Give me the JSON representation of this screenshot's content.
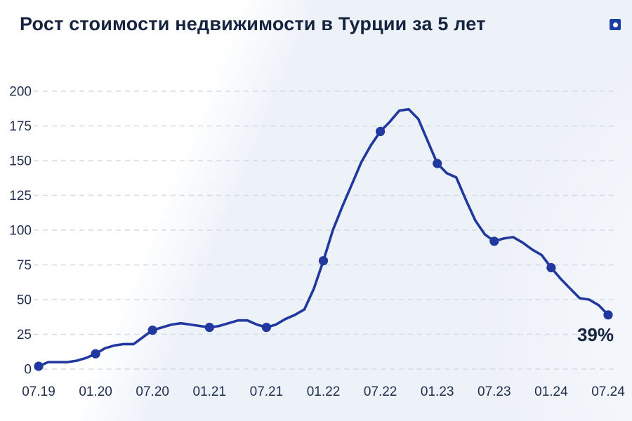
{
  "header": {
    "title": "Рост стоимости недвижимости в Турции за 5 лет",
    "logo_color": "#1e3ea7"
  },
  "chart_data": {
    "type": "line",
    "title": "Рост стоимости недвижимости в Турции за 5 лет",
    "unit": "%",
    "x_tick_labels": [
      "07.19",
      "01.20",
      "07.20",
      "01.21",
      "07.21",
      "01.22",
      "07.22",
      "01.23",
      "07.23",
      "01.24",
      "07.24"
    ],
    "y_ticks": [
      0,
      25,
      50,
      75,
      100,
      125,
      150,
      175,
      200
    ],
    "ylim": [
      0,
      200
    ],
    "grid": "horizontal-dashed",
    "legend": "none",
    "x_monthly_start": "07.19",
    "x_monthly_end": "07.24",
    "points_per_tick": 6,
    "values_monthly": [
      2,
      5,
      5,
      5,
      6,
      8,
      11,
      15,
      17,
      18,
      18,
      23,
      28,
      30,
      32,
      33,
      32,
      31,
      30,
      31,
      33,
      35,
      35,
      32,
      30,
      32,
      36,
      39,
      43,
      58,
      78,
      100,
      117,
      133,
      149,
      161,
      171,
      178,
      186,
      187,
      180,
      164,
      148,
      141,
      138,
      122,
      107,
      97,
      92,
      94,
      95,
      91,
      86,
      82,
      73,
      65,
      58,
      51,
      50,
      46,
      39
    ],
    "marker_values_at_ticks": [
      2,
      11,
      28,
      30,
      30,
      78,
      171,
      148,
      92,
      73,
      39
    ],
    "peak_value": 187,
    "end_label": "39%",
    "line_color": "#21399f",
    "marker_color": "#21399f",
    "grid_color": "#d5dae3",
    "label_color": "#1f2e4d",
    "end_label_color": "#16243f"
  }
}
